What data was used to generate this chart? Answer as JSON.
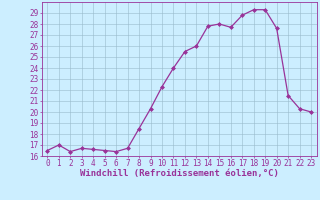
{
  "x": [
    0,
    1,
    2,
    3,
    4,
    5,
    6,
    7,
    8,
    9,
    10,
    11,
    12,
    13,
    14,
    15,
    16,
    17,
    18,
    19,
    20,
    21,
    22,
    23
  ],
  "y": [
    16.5,
    17.0,
    16.4,
    16.7,
    16.6,
    16.5,
    16.4,
    16.7,
    18.5,
    20.3,
    22.3,
    24.0,
    25.5,
    26.0,
    27.8,
    28.0,
    27.7,
    28.8,
    29.3,
    29.3,
    27.6,
    21.5,
    20.3,
    20.0
  ],
  "line_color": "#993399",
  "marker": "D",
  "markersize": 2.0,
  "linewidth": 0.9,
  "bg_color": "#cceeff",
  "grid_color": "#99bbcc",
  "xlabel": "Windchill (Refroidissement éolien,°C)",
  "ylim": [
    16,
    30
  ],
  "xlim": [
    -0.5,
    23.5
  ],
  "yticks": [
    16,
    17,
    18,
    19,
    20,
    21,
    22,
    23,
    24,
    25,
    26,
    27,
    28,
    29
  ],
  "xticks": [
    0,
    1,
    2,
    3,
    4,
    5,
    6,
    7,
    8,
    9,
    10,
    11,
    12,
    13,
    14,
    15,
    16,
    17,
    18,
    19,
    20,
    21,
    22,
    23
  ],
  "tick_color": "#993399",
  "label_color": "#993399",
  "axis_color": "#993399",
  "xlabel_fontsize": 6.5,
  "tick_fontsize": 5.5
}
